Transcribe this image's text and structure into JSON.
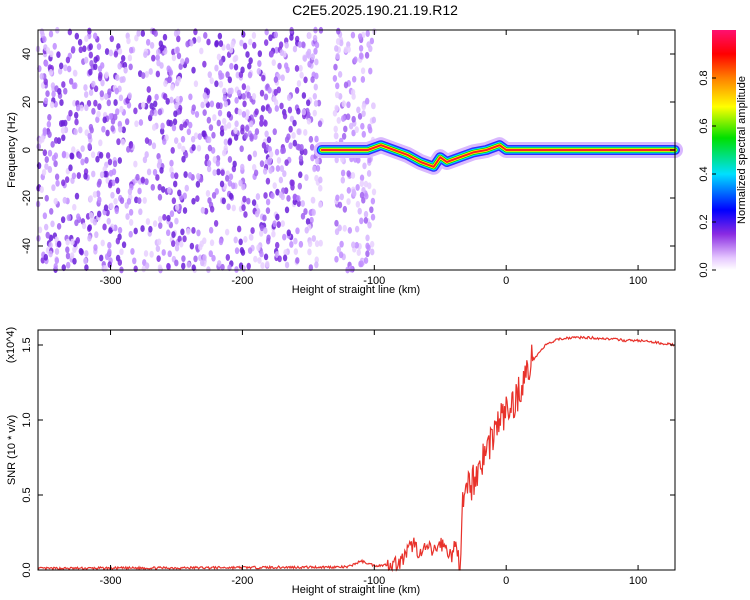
{
  "title": "C2E5.2025.190.21.19.R12",
  "colors": {
    "snr_line": "#e8322b",
    "axis": "#000000"
  },
  "chart_data": [
    {
      "type": "heatmap",
      "xlabel": "Height of straight line (km)",
      "ylabel": "Frequency (Hz)",
      "xlim": [
        -355,
        128
      ],
      "ylim": [
        -50,
        50
      ],
      "x_ticks": [
        -300,
        -200,
        -100,
        0,
        100
      ],
      "x_tick_labels": [
        "-300",
        "-200",
        "-100",
        "0",
        "100"
      ],
      "y_ticks": [
        -40,
        -20,
        0,
        20,
        40
      ],
      "y_tick_labels": [
        "-40",
        "-20",
        "0",
        "20",
        "40"
      ],
      "colorbar": {
        "label": "Normalized spectral amplitude",
        "range": [
          0,
          1
        ],
        "ticks": [
          0.0,
          0.2,
          0.4,
          0.6,
          0.8
        ],
        "tick_labels": [
          "0.0",
          "0.2",
          "0.4",
          "0.6",
          "0.8"
        ],
        "colormap": "rainbow (white → purple → blue → cyan → green → yellow → red → magenta)"
      },
      "signal_track": {
        "x": [
          -140,
          -125,
          -105,
          -95,
          -85,
          -75,
          -65,
          -55,
          -50,
          -45,
          -35,
          -25,
          -15,
          -5,
          0,
          128
        ],
        "y": [
          0,
          0,
          0,
          2,
          0,
          -2,
          -5,
          -7,
          -3,
          -5,
          -3,
          -1,
          0,
          2,
          0,
          0
        ]
      }
    },
    {
      "type": "line",
      "xlabel": "Height of straight line (km)",
      "ylabel": "SNR (10 * v/v)",
      "scale_label": "(x10^4)",
      "xlim": [
        -355,
        128
      ],
      "ylim": [
        0,
        1.6
      ],
      "x_ticks": [
        -300,
        -200,
        -100,
        0,
        100
      ],
      "x_tick_labels": [
        "-300",
        "-200",
        "-100",
        "0",
        "100"
      ],
      "y_ticks": [
        0.0,
        0.5,
        1.0,
        1.5
      ],
      "y_tick_labels": [
        "0.0",
        "0.5",
        "1.0",
        "1.5"
      ],
      "series": [
        {
          "x": [
            -355,
            -120,
            -110,
            -100,
            -95,
            -80,
            -75,
            -70,
            -65,
            -60,
            -55,
            -50,
            -45,
            -40,
            -37,
            -35,
            -33,
            -30,
            -28,
            -25,
            -20,
            -15,
            -10,
            -5,
            0,
            5,
            10,
            15,
            20,
            25,
            30,
            35,
            40,
            50,
            60,
            80,
            90,
            100,
            110,
            128
          ],
          "y": [
            0.01,
            0.02,
            0.06,
            0.03,
            0.03,
            0.05,
            0.12,
            0.18,
            0.1,
            0.15,
            0.12,
            0.18,
            0.14,
            0.08,
            0.2,
            0.05,
            0.4,
            0.5,
            0.55,
            0.6,
            0.7,
            0.8,
            0.9,
            1.0,
            1.05,
            1.1,
            1.2,
            1.3,
            1.4,
            1.45,
            1.5,
            1.52,
            1.54,
            1.55,
            1.55,
            1.54,
            1.53,
            1.53,
            1.52,
            1.5
          ]
        }
      ]
    }
  ]
}
